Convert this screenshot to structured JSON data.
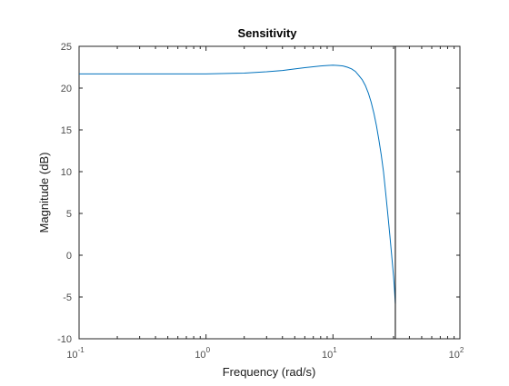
{
  "chart_data": {
    "type": "line",
    "title": "Sensitivity",
    "xlabel": "Frequency  (rad/s)",
    "ylabel": "Magnitude (dB)",
    "x_scale": "log",
    "xlim": [
      0.1,
      100
    ],
    "ylim": [
      -10,
      25
    ],
    "yticks": [
      "-10",
      "-5",
      "0",
      "5",
      "10",
      "15",
      "20",
      "25"
    ],
    "xticks": [
      {
        "base": "10",
        "exp": "-1",
        "value": 0.1
      },
      {
        "base": "10",
        "exp": "0",
        "value": 1
      },
      {
        "base": "10",
        "exp": "1",
        "value": 10
      },
      {
        "base": "10",
        "exp": "2",
        "value": 100
      }
    ],
    "grid": false,
    "series": [
      {
        "color": "#0072bd",
        "x": [
          0.1,
          0.3,
          1,
          2,
          3,
          4,
          5,
          6,
          7,
          8,
          9,
          10,
          11,
          12,
          13,
          14,
          15,
          16,
          17,
          18,
          19,
          20,
          21,
          22,
          23,
          24,
          25,
          26,
          27,
          28,
          29,
          30,
          30.5,
          31
        ],
        "y": [
          21.7,
          21.7,
          21.7,
          21.8,
          21.95,
          22.1,
          22.3,
          22.45,
          22.55,
          22.65,
          22.7,
          22.75,
          22.7,
          22.65,
          22.5,
          22.3,
          22.0,
          21.5,
          21.0,
          20.3,
          19.4,
          18.3,
          17.0,
          15.5,
          13.8,
          12.0,
          10.0,
          7.5,
          5.0,
          2.5,
          0.0,
          -2.5,
          -4.0,
          -5.8
        ]
      }
    ],
    "reference_line": {
      "x": 31,
      "color": "#000000"
    }
  }
}
